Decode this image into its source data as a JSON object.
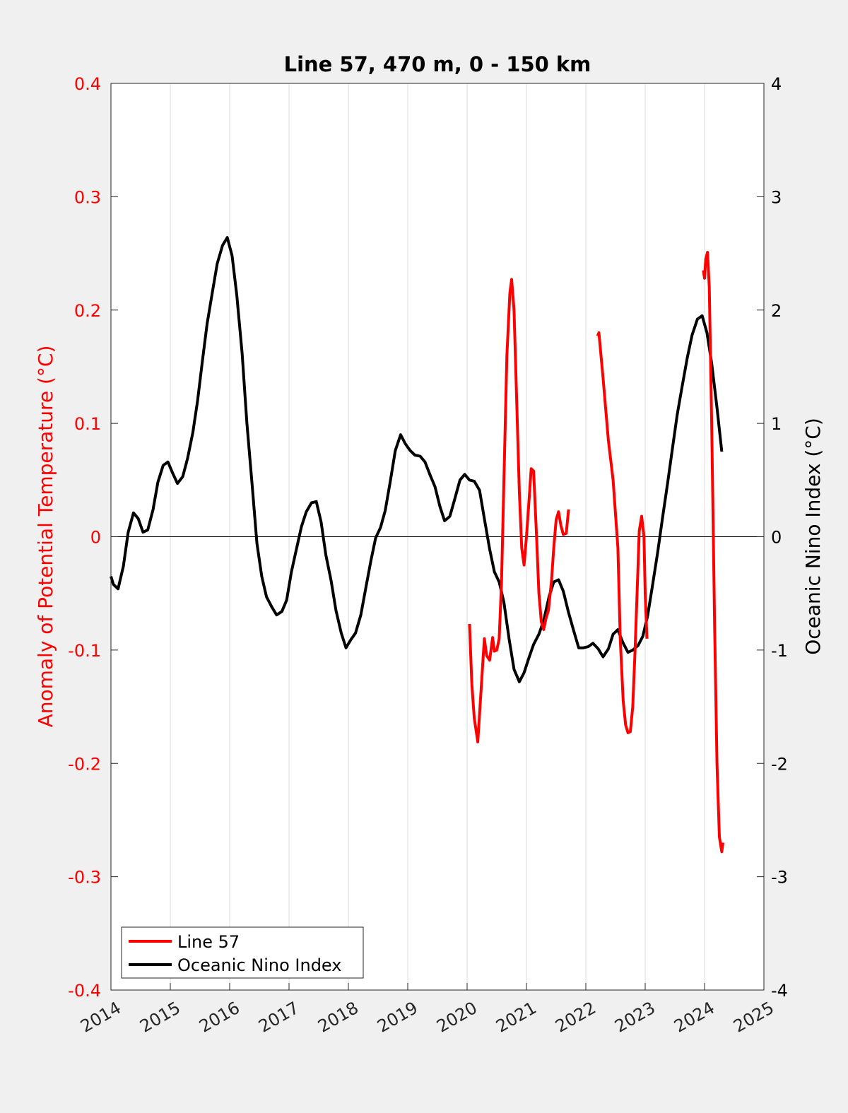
{
  "chart_data": {
    "type": "line",
    "title": "Line 57, 470 m, 0 - 150 km",
    "xlabel": "",
    "ylabel_left": "Anomaly of Potential Temperature (°C)",
    "ylabel_right": "Oceanic Nino Index (°C)",
    "xlim": [
      2014,
      2025
    ],
    "ylim_left": [
      -0.4,
      0.4
    ],
    "ylim_right": [
      -4,
      4
    ],
    "x_ticks": [
      "2014",
      "2015",
      "2016",
      "2017",
      "2018",
      "2019",
      "2020",
      "2021",
      "2022",
      "2023",
      "2024",
      "2025"
    ],
    "y_ticks_left": [
      "-0.4",
      "-0.3",
      "-0.2",
      "-0.1",
      "0",
      "0.1",
      "0.2",
      "0.3",
      "0.4"
    ],
    "y_ticks_right": [
      "-4",
      "-3",
      "-2",
      "-1",
      "0",
      "1",
      "2",
      "3",
      "4"
    ],
    "grid": "vertical",
    "legend_position": "bottom-left",
    "colors": {
      "line57": "#ff0000",
      "oni": "#000000",
      "left_axis": "#ff0000",
      "background": "#f0f0f0"
    },
    "series": [
      {
        "name": "Line 57",
        "axis": "left",
        "segments": [
          [
            [
              2020.04,
              -0.077
            ],
            [
              2020.08,
              -0.13
            ],
            [
              2020.12,
              -0.16
            ],
            [
              2020.18,
              -0.181
            ],
            [
              2020.23,
              -0.14
            ],
            [
              2020.29,
              -0.09
            ],
            [
              2020.33,
              -0.105
            ],
            [
              2020.38,
              -0.109
            ],
            [
              2020.43,
              -0.089
            ],
            [
              2020.46,
              -0.101
            ],
            [
              2020.5,
              -0.1
            ],
            [
              2020.54,
              -0.09
            ],
            [
              2020.58,
              -0.04
            ],
            [
              2020.62,
              0.05
            ],
            [
              2020.67,
              0.16
            ],
            [
              2020.72,
              0.215
            ],
            [
              2020.75,
              0.227
            ],
            [
              2020.79,
              0.2
            ],
            [
              2020.83,
              0.13
            ],
            [
              2020.88,
              0.04
            ],
            [
              2020.92,
              -0.01
            ],
            [
              2020.96,
              -0.025
            ],
            [
              2021.0,
              0.0
            ],
            [
              2021.04,
              0.03
            ],
            [
              2021.08,
              0.06
            ],
            [
              2021.12,
              0.058
            ],
            [
              2021.17,
              0.0
            ],
            [
              2021.21,
              -0.05
            ],
            [
              2021.25,
              -0.075
            ],
            [
              2021.29,
              -0.082
            ],
            [
              2021.33,
              -0.072
            ],
            [
              2021.37,
              -0.065
            ],
            [
              2021.42,
              -0.04
            ],
            [
              2021.46,
              -0.01
            ],
            [
              2021.5,
              0.015
            ],
            [
              2021.54,
              0.022
            ],
            [
              2021.58,
              0.01
            ],
            [
              2021.62,
              0.002
            ],
            [
              2021.67,
              0.003
            ],
            [
              2021.71,
              0.024
            ]
          ],
          [
            [
              2022.2,
              0.177
            ],
            [
              2022.22,
              0.18
            ],
            [
              2022.29,
              0.14
            ],
            [
              2022.38,
              0.085
            ],
            [
              2022.46,
              0.05
            ],
            [
              2022.54,
              -0.01
            ],
            [
              2022.58,
              -0.09
            ],
            [
              2022.63,
              -0.145
            ],
            [
              2022.67,
              -0.166
            ],
            [
              2022.71,
              -0.173
            ],
            [
              2022.75,
              -0.172
            ],
            [
              2022.79,
              -0.15
            ],
            [
              2022.83,
              -0.1
            ],
            [
              2022.87,
              -0.04
            ],
            [
              2022.9,
              0.005
            ],
            [
              2022.94,
              0.018
            ],
            [
              2022.98,
              0.0
            ],
            [
              2023.0,
              -0.05
            ],
            [
              2023.03,
              -0.09
            ]
          ],
          [
            [
              2023.98,
              0.235
            ],
            [
              2024.0,
              0.228
            ],
            [
              2024.02,
              0.245
            ],
            [
              2024.05,
              0.251
            ],
            [
              2024.08,
              0.22
            ],
            [
              2024.12,
              0.1
            ],
            [
              2024.17,
              -0.08
            ],
            [
              2024.21,
              -0.2
            ],
            [
              2024.25,
              -0.265
            ],
            [
              2024.29,
              -0.278
            ],
            [
              2024.31,
              -0.27
            ]
          ]
        ]
      },
      {
        "name": "Oceanic Nino Index",
        "axis": "right",
        "points": [
          [
            2014.0,
            -0.35
          ],
          [
            2014.04,
            -0.42
          ],
          [
            2014.12,
            -0.46
          ],
          [
            2014.21,
            -0.26
          ],
          [
            2014.29,
            0.04
          ],
          [
            2014.38,
            0.21
          ],
          [
            2014.46,
            0.16
          ],
          [
            2014.54,
            0.04
          ],
          [
            2014.62,
            0.06
          ],
          [
            2014.71,
            0.24
          ],
          [
            2014.79,
            0.48
          ],
          [
            2014.88,
            0.63
          ],
          [
            2014.96,
            0.66
          ],
          [
            2015.04,
            0.56
          ],
          [
            2015.12,
            0.47
          ],
          [
            2015.21,
            0.53
          ],
          [
            2015.29,
            0.69
          ],
          [
            2015.38,
            0.92
          ],
          [
            2015.46,
            1.2
          ],
          [
            2015.54,
            1.55
          ],
          [
            2015.62,
            1.88
          ],
          [
            2015.71,
            2.16
          ],
          [
            2015.79,
            2.41
          ],
          [
            2015.88,
            2.57
          ],
          [
            2015.96,
            2.64
          ],
          [
            2016.04,
            2.48
          ],
          [
            2016.12,
            2.13
          ],
          [
            2016.21,
            1.62
          ],
          [
            2016.29,
            1.0
          ],
          [
            2016.38,
            0.45
          ],
          [
            2016.46,
            -0.06
          ],
          [
            2016.54,
            -0.35
          ],
          [
            2016.62,
            -0.53
          ],
          [
            2016.71,
            -0.62
          ],
          [
            2016.79,
            -0.69
          ],
          [
            2016.88,
            -0.66
          ],
          [
            2016.96,
            -0.56
          ],
          [
            2017.04,
            -0.31
          ],
          [
            2017.12,
            -0.12
          ],
          [
            2017.21,
            0.09
          ],
          [
            2017.29,
            0.22
          ],
          [
            2017.38,
            0.3
          ],
          [
            2017.46,
            0.31
          ],
          [
            2017.54,
            0.13
          ],
          [
            2017.62,
            -0.16
          ],
          [
            2017.71,
            -0.39
          ],
          [
            2017.79,
            -0.65
          ],
          [
            2017.88,
            -0.85
          ],
          [
            2017.96,
            -0.98
          ],
          [
            2018.04,
            -0.91
          ],
          [
            2018.12,
            -0.85
          ],
          [
            2018.21,
            -0.69
          ],
          [
            2018.29,
            -0.46
          ],
          [
            2018.38,
            -0.21
          ],
          [
            2018.46,
            -0.01
          ],
          [
            2018.54,
            0.08
          ],
          [
            2018.62,
            0.23
          ],
          [
            2018.71,
            0.5
          ],
          [
            2018.79,
            0.76
          ],
          [
            2018.88,
            0.9
          ],
          [
            2018.96,
            0.82
          ],
          [
            2019.04,
            0.76
          ],
          [
            2019.12,
            0.72
          ],
          [
            2019.21,
            0.71
          ],
          [
            2019.29,
            0.66
          ],
          [
            2019.38,
            0.54
          ],
          [
            2019.46,
            0.44
          ],
          [
            2019.54,
            0.27
          ],
          [
            2019.62,
            0.14
          ],
          [
            2019.71,
            0.18
          ],
          [
            2019.79,
            0.33
          ],
          [
            2019.88,
            0.5
          ],
          [
            2019.96,
            0.55
          ],
          [
            2020.04,
            0.5
          ],
          [
            2020.12,
            0.49
          ],
          [
            2020.21,
            0.41
          ],
          [
            2020.29,
            0.16
          ],
          [
            2020.38,
            -0.11
          ],
          [
            2020.46,
            -0.31
          ],
          [
            2020.54,
            -0.4
          ],
          [
            2020.62,
            -0.58
          ],
          [
            2020.71,
            -0.91
          ],
          [
            2020.79,
            -1.17
          ],
          [
            2020.88,
            -1.28
          ],
          [
            2020.96,
            -1.2
          ],
          [
            2021.04,
            -1.07
          ],
          [
            2021.12,
            -0.95
          ],
          [
            2021.21,
            -0.86
          ],
          [
            2021.29,
            -0.74
          ],
          [
            2021.38,
            -0.53
          ],
          [
            2021.46,
            -0.4
          ],
          [
            2021.54,
            -0.38
          ],
          [
            2021.62,
            -0.48
          ],
          [
            2021.71,
            -0.67
          ],
          [
            2021.79,
            -0.82
          ],
          [
            2021.88,
            -0.98
          ],
          [
            2021.96,
            -0.98
          ],
          [
            2022.04,
            -0.97
          ],
          [
            2022.12,
            -0.94
          ],
          [
            2022.21,
            -0.99
          ],
          [
            2022.29,
            -1.06
          ],
          [
            2022.38,
            -0.99
          ],
          [
            2022.46,
            -0.86
          ],
          [
            2022.54,
            -0.82
          ],
          [
            2022.62,
            -0.93
          ],
          [
            2022.71,
            -1.02
          ],
          [
            2022.79,
            -1.0
          ],
          [
            2022.88,
            -0.96
          ],
          [
            2022.96,
            -0.88
          ],
          [
            2023.04,
            -0.7
          ],
          [
            2023.12,
            -0.44
          ],
          [
            2023.21,
            -0.14
          ],
          [
            2023.29,
            0.16
          ],
          [
            2023.38,
            0.48
          ],
          [
            2023.46,
            0.78
          ],
          [
            2023.54,
            1.08
          ],
          [
            2023.62,
            1.32
          ],
          [
            2023.71,
            1.58
          ],
          [
            2023.79,
            1.78
          ],
          [
            2023.88,
            1.92
          ],
          [
            2023.96,
            1.95
          ],
          [
            2024.04,
            1.8
          ],
          [
            2024.12,
            1.53
          ],
          [
            2024.21,
            1.14
          ],
          [
            2024.29,
            0.75
          ]
        ]
      }
    ]
  }
}
